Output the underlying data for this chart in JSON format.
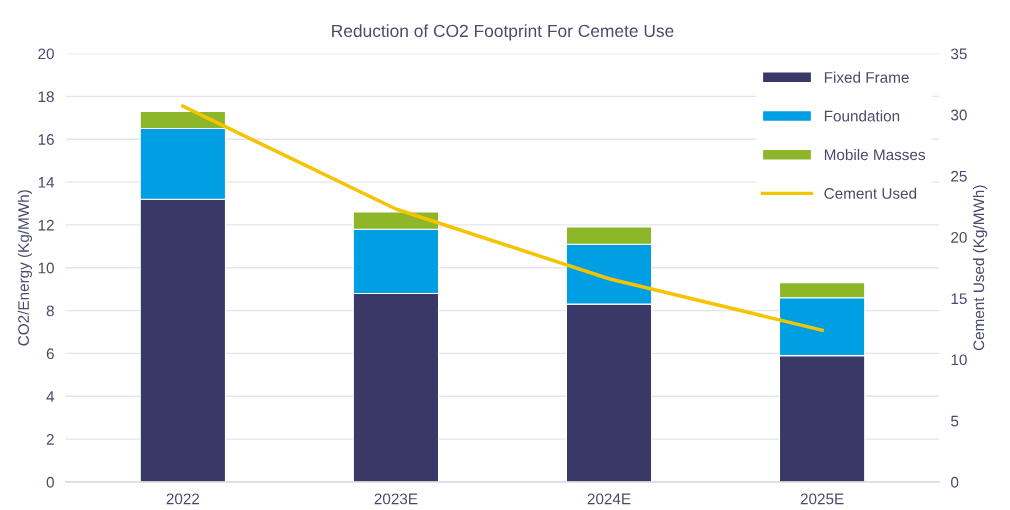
{
  "chart_data": {
    "type": "bar",
    "stacked": true,
    "title": "Reduction of CO2 Footprint For Cemete Use",
    "categories": [
      "2022",
      "2023E",
      "2024E",
      "2025E"
    ],
    "series": [
      {
        "name": "Fixed Frame",
        "color": "#393867",
        "values": [
          13.2,
          8.8,
          8.3,
          5.9
        ]
      },
      {
        "name": "Foundation",
        "color": "#009fe3",
        "values": [
          3.3,
          3.0,
          2.8,
          2.7
        ]
      },
      {
        "name": "Mobile Masses",
        "color": "#8db728",
        "values": [
          0.8,
          0.8,
          0.8,
          0.7
        ]
      },
      {
        "name": "Cement Used",
        "type": "line",
        "axis": "y2",
        "color": "#f5c400",
        "values": [
          30.7,
          22.3,
          16.6,
          12.4
        ]
      }
    ],
    "ylabel": "CO2/Energy (Kg/MWh)",
    "y2label": "Cement Used (Kg/MWh)",
    "ylim": [
      0,
      20
    ],
    "yticks": [
      0,
      2,
      4,
      6,
      8,
      10,
      12,
      14,
      16,
      18,
      20
    ],
    "y2lim": [
      0,
      35
    ],
    "y2ticks": [
      0,
      5,
      10,
      15,
      20,
      25,
      30,
      35
    ],
    "grid": "y",
    "legend": "top right"
  }
}
